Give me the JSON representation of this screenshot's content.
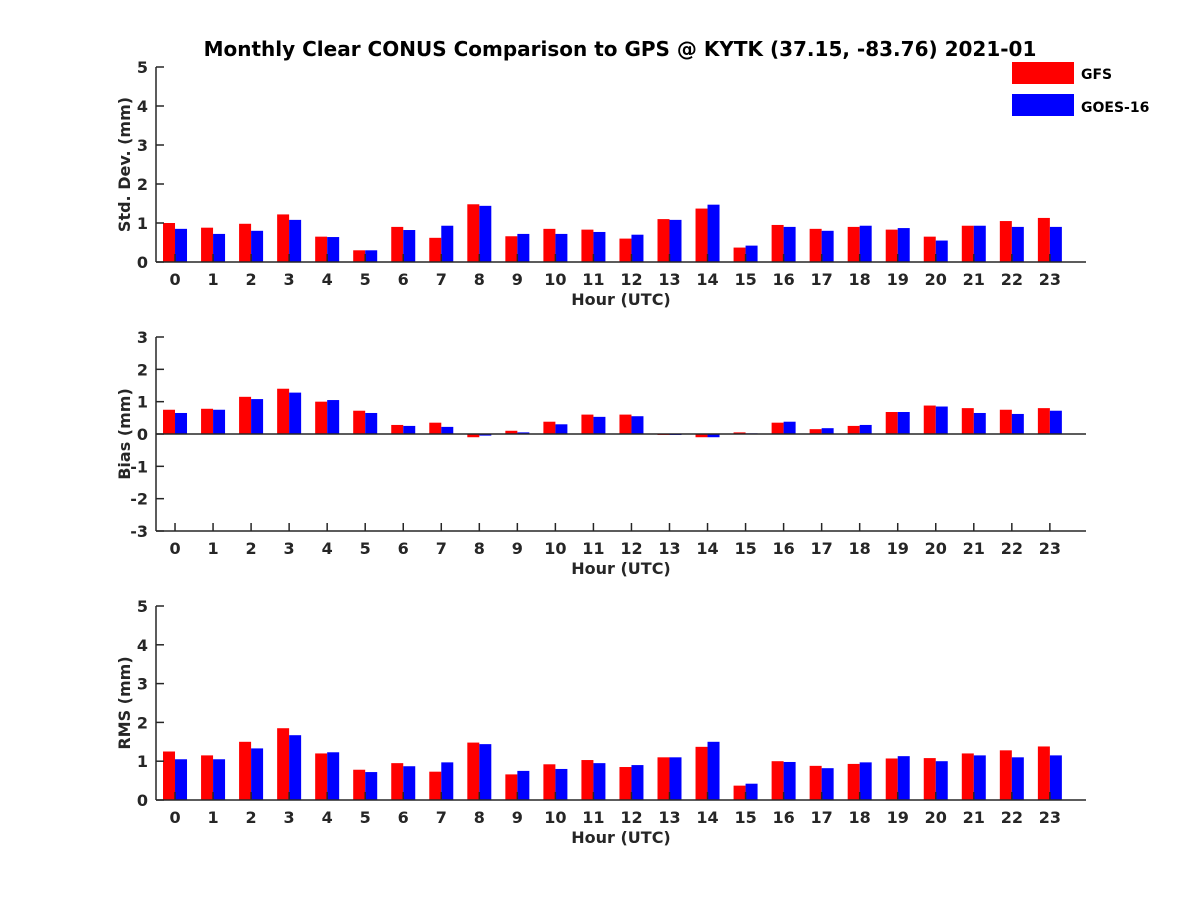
{
  "figure": {
    "title": "Monthly Clear CONUS Comparison to GPS @ KYTK (37.15, -83.76) 2021-01"
  },
  "legend": {
    "entries": [
      {
        "label": "GFS",
        "color": "#ff0000"
      },
      {
        "label": "GOES-16",
        "color": "#0000ff"
      }
    ],
    "placement": "top-right"
  },
  "chart_data": [
    {
      "type": "bar",
      "xlabel": "Hour (UTC)",
      "ylabel": "Std. Dev. (mm)",
      "ylim": [
        0,
        5
      ],
      "yticks": [
        "0",
        "1",
        "2",
        "3",
        "4",
        "5"
      ],
      "categories": [
        "0",
        "1",
        "2",
        "3",
        "4",
        "5",
        "6",
        "7",
        "8",
        "9",
        "10",
        "11",
        "12",
        "13",
        "14",
        "15",
        "16",
        "17",
        "18",
        "19",
        "20",
        "21",
        "22",
        "23"
      ],
      "series": [
        {
          "name": "GFS",
          "color": "#ff0000",
          "values": [
            1.0,
            0.88,
            0.98,
            1.22,
            0.65,
            0.3,
            0.9,
            0.62,
            1.48,
            0.66,
            0.85,
            0.83,
            0.6,
            1.1,
            1.37,
            0.37,
            0.95,
            0.85,
            0.9,
            0.83,
            0.65,
            0.93,
            1.05,
            1.13
          ]
        },
        {
          "name": "GOES-16",
          "color": "#0000ff",
          "values": [
            0.85,
            0.72,
            0.8,
            1.08,
            0.64,
            0.3,
            0.82,
            0.93,
            1.44,
            0.72,
            0.72,
            0.77,
            0.7,
            1.08,
            1.47,
            0.42,
            0.9,
            0.8,
            0.93,
            0.87,
            0.55,
            0.93,
            0.9,
            0.9
          ]
        }
      ]
    },
    {
      "type": "bar",
      "xlabel": "Hour (UTC)",
      "ylabel": "Bias (mm)",
      "ylim": [
        -3,
        3
      ],
      "yticks": [
        "-3",
        "-2",
        "-1",
        "0",
        "1",
        "2",
        "3"
      ],
      "categories": [
        "0",
        "1",
        "2",
        "3",
        "4",
        "5",
        "6",
        "7",
        "8",
        "9",
        "10",
        "11",
        "12",
        "13",
        "14",
        "15",
        "16",
        "17",
        "18",
        "19",
        "20",
        "21",
        "22",
        "23"
      ],
      "series": [
        {
          "name": "GFS",
          "color": "#ff0000",
          "values": [
            0.75,
            0.78,
            1.15,
            1.4,
            1.0,
            0.72,
            0.28,
            0.35,
            -0.1,
            0.1,
            0.38,
            0.6,
            0.6,
            -0.03,
            -0.1,
            0.05,
            0.35,
            0.15,
            0.25,
            0.68,
            0.88,
            0.8,
            0.75,
            0.8
          ]
        },
        {
          "name": "GOES-16",
          "color": "#0000ff",
          "values": [
            0.65,
            0.75,
            1.08,
            1.28,
            1.05,
            0.65,
            0.25,
            0.22,
            -0.05,
            0.05,
            0.3,
            0.53,
            0.55,
            -0.03,
            -0.1,
            0.02,
            0.38,
            0.18,
            0.28,
            0.68,
            0.85,
            0.65,
            0.62,
            0.72
          ]
        }
      ]
    },
    {
      "type": "bar",
      "xlabel": "Hour (UTC)",
      "ylabel": "RMS (mm)",
      "ylim": [
        0,
        5
      ],
      "yticks": [
        "0",
        "1",
        "2",
        "3",
        "4",
        "5"
      ],
      "categories": [
        "0",
        "1",
        "2",
        "3",
        "4",
        "5",
        "6",
        "7",
        "8",
        "9",
        "10",
        "11",
        "12",
        "13",
        "14",
        "15",
        "16",
        "17",
        "18",
        "19",
        "20",
        "21",
        "22",
        "23"
      ],
      "series": [
        {
          "name": "GFS",
          "color": "#ff0000",
          "values": [
            1.25,
            1.15,
            1.5,
            1.85,
            1.2,
            0.78,
            0.95,
            0.73,
            1.48,
            0.66,
            0.92,
            1.03,
            0.85,
            1.1,
            1.37,
            0.37,
            1.0,
            0.88,
            0.93,
            1.07,
            1.08,
            1.2,
            1.28,
            1.38
          ]
        },
        {
          "name": "GOES-16",
          "color": "#0000ff",
          "values": [
            1.05,
            1.05,
            1.33,
            1.67,
            1.23,
            0.72,
            0.87,
            0.97,
            1.44,
            0.75,
            0.8,
            0.95,
            0.9,
            1.1,
            1.5,
            0.42,
            0.98,
            0.82,
            0.97,
            1.13,
            1.0,
            1.15,
            1.1,
            1.15
          ]
        }
      ]
    }
  ]
}
